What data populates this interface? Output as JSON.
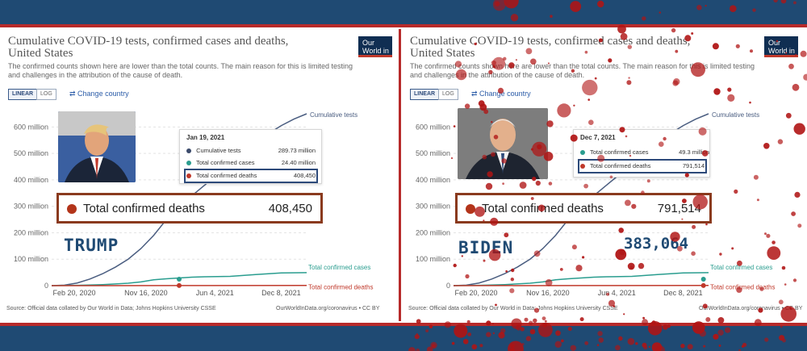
{
  "left": {
    "title": "Cumulative COVID-19 tests, confirmed cases and deaths, United States",
    "subtitle": "The confirmed counts shown here are lower than the total counts. The main reason for this is limited testing and challenges in the attribution of the cause of death.",
    "logo": "Our World in Data",
    "buttons": {
      "linear": "LINEAR",
      "log": "LOG",
      "change_country": "⇄ Change country"
    },
    "tooltip": {
      "date": "Jan 19, 2021",
      "rows": [
        {
          "label": "Cumulative tests",
          "value": "289.73 million",
          "color": "#3b4a6b"
        },
        {
          "label": "Total confirmed cases",
          "value": "24.40 million",
          "color": "#2a9d8f"
        },
        {
          "label": "Total confirmed deaths",
          "value": "408,450",
          "color": "#c0392b"
        }
      ]
    },
    "callout": {
      "label": "Total confirmed deaths",
      "value": "408,450"
    },
    "president": "TRUMP",
    "source": "Source: Official data collated by Our World in Data; Johns Hopkins University CSSE",
    "credit": "OurWorldInData.org/coronavirus • CC BY"
  },
  "right": {
    "title": "Cumulative COVID-19 tests, confirmed cases and deaths, United States",
    "subtitle": "The confirmed counts shown here are lower than the total counts. The main reason for this is limited testing and challenges in the attribution of the cause of death.",
    "logo": "Our World in Data",
    "buttons": {
      "linear": "LINEAR",
      "log": "LOG",
      "change_country": "⇄ Change country"
    },
    "tooltip": {
      "date": "Dec 7, 2021",
      "rows": [
        {
          "label": "Total confirmed cases",
          "value": "49.3 million",
          "color": "#2a9d8f"
        },
        {
          "label": "Total confirmed deaths",
          "value": "791,514",
          "color": "#c0392b"
        }
      ]
    },
    "callout": {
      "label": "Total confirmed deaths",
      "value": "791,514"
    },
    "president": "BIDEN",
    "difference": "383,064",
    "source": "Source: Official data collated by Our World in Data; Johns Hopkins University CSSE",
    "credit": "OurWorldInData.org/coronavirus • CC BY"
  },
  "chart_data": [
    {
      "type": "line",
      "title": "Cumulative COVID-19 tests, confirmed cases and deaths, United States",
      "y_ticks": [
        "0",
        "100 million",
        "200 million",
        "300 million",
        "400 million",
        "500 million",
        "600 million"
      ],
      "ylim": [
        0,
        650000000
      ],
      "x_ticks": [
        "Feb 20, 2020",
        "Nov 16, 2020",
        "Jun 4, 2021",
        "Dec 8, 2021"
      ],
      "x_positions": [
        0,
        0.37,
        0.64,
        0.9
      ],
      "series": [
        {
          "name": "Cumulative tests",
          "color": "#4a5d80",
          "x": [
            0,
            0.05,
            0.1,
            0.15,
            0.2,
            0.25,
            0.3,
            0.35,
            0.4,
            0.45,
            0.5,
            0.55,
            0.6,
            0.65,
            0.7,
            0.75,
            0.8,
            0.85,
            0.9,
            0.95,
            1.0
          ],
          "y": [
            0,
            2000000,
            10000000,
            25000000,
            45000000,
            70000000,
            100000000,
            140000000,
            190000000,
            250000000,
            300000000,
            340000000,
            380000000,
            420000000,
            460000000,
            500000000,
            540000000,
            575000000,
            605000000,
            630000000,
            650000000
          ]
        },
        {
          "name": "Total confirmed cases",
          "color": "#2a9d8f",
          "x": [
            0,
            0.1,
            0.2,
            0.3,
            0.35,
            0.4,
            0.45,
            0.5,
            0.55,
            0.6,
            0.7,
            0.8,
            0.9,
            1.0
          ],
          "y": [
            0,
            1000000,
            4000000,
            9000000,
            14000000,
            22000000,
            26000000,
            29000000,
            32000000,
            33500000,
            35000000,
            42000000,
            48000000,
            49300000
          ]
        },
        {
          "name": "Total confirmed deaths",
          "color": "#c0392b",
          "x": [
            0,
            0.5,
            1.0
          ],
          "y": [
            0,
            408450,
            791514
          ]
        }
      ]
    }
  ]
}
